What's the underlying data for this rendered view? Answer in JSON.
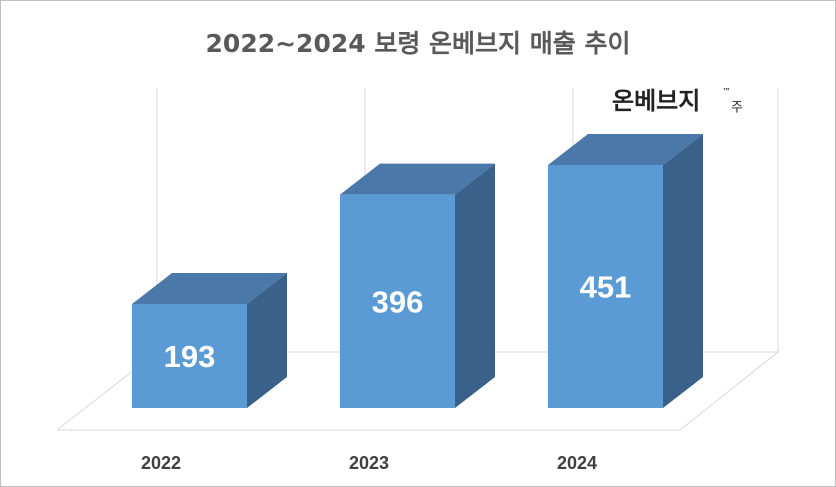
{
  "chart_data": {
    "type": "bar3d",
    "title": "2022~2024 보령 온베브지 매출 추이",
    "categories": [
      "2022",
      "2023",
      "2024"
    ],
    "values": [
      193,
      396,
      451
    ],
    "color": "#5b9bd5",
    "annotation": {
      "logo": "온베브지",
      "trademark": "™",
      "suffix": "주"
    }
  }
}
